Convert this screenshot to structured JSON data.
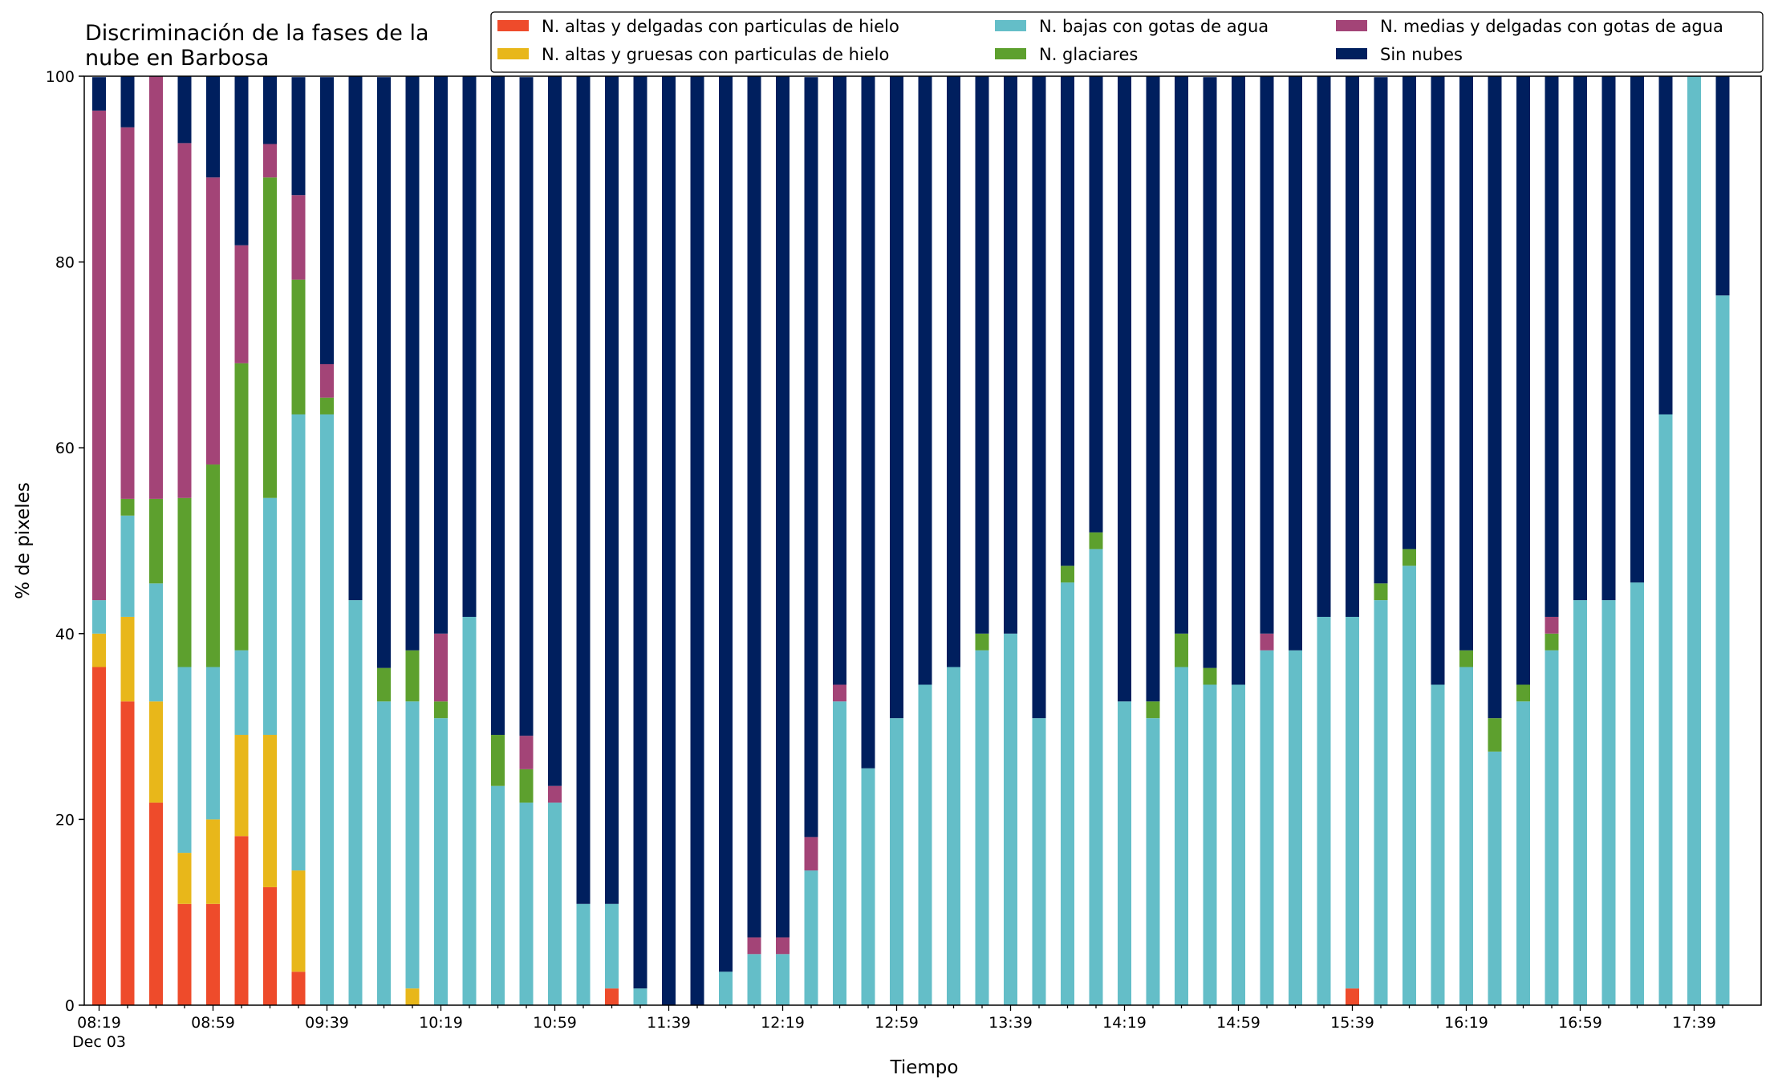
{
  "chart_data": {
    "type": "bar",
    "stacked": true,
    "title": "Discriminación de la fases de la\nnube en Barbosa",
    "xlabel": "Tiempo",
    "ylabel": "% de pixeles",
    "ylim": [
      0,
      100
    ],
    "yticks": [
      0,
      20,
      40,
      60,
      80,
      100
    ],
    "grid": false,
    "legend_position": "top-right",
    "start_time": "08:19",
    "interval_minutes": 10,
    "count": 58,
    "xtick_labels": [
      "08:19\nDec 03",
      "08:59",
      "09:39",
      "10:19",
      "10:59",
      "11:39",
      "12:19",
      "12:59",
      "13:39",
      "14:19",
      "14:59",
      "15:39",
      "16:19",
      "16:59",
      "17:39"
    ],
    "xtick_every": 4,
    "series": [
      {
        "name": "N. altas y delgadas con particulas de hielo",
        "color": "#ee4b2b",
        "values": [
          36.4,
          32.7,
          21.8,
          10.9,
          10.9,
          18.2,
          12.7,
          3.6,
          0,
          0,
          0,
          0,
          0,
          0,
          0,
          0,
          0,
          0,
          1.8,
          0,
          0,
          0,
          0,
          0,
          0,
          0,
          0,
          0,
          0,
          0,
          0,
          0,
          0,
          0,
          0,
          0,
          0,
          0,
          0,
          0,
          0,
          0,
          0,
          0,
          1.8,
          0,
          0,
          0,
          0,
          0,
          0,
          0,
          0,
          0,
          0,
          0,
          0,
          0
        ]
      },
      {
        "name": "N. altas y gruesas con particulas de hielo",
        "color": "#e8b71a",
        "values": [
          3.6,
          9.1,
          10.9,
          5.5,
          9.1,
          10.9,
          16.4,
          10.9,
          0,
          0,
          0,
          1.8,
          0,
          0,
          0,
          0,
          0,
          0,
          0,
          0,
          0,
          0,
          0,
          0,
          0,
          0,
          0,
          0,
          0,
          0,
          0,
          0,
          0,
          0,
          0,
          0,
          0,
          0,
          0,
          0,
          0,
          0,
          0,
          0,
          0,
          0,
          0,
          0,
          0,
          0,
          0,
          0,
          0,
          0,
          0,
          0,
          0,
          0
        ]
      },
      {
        "name": "N. bajas con gotas de agua",
        "color": "#64bec8",
        "values": [
          3.6,
          10.9,
          12.7,
          20,
          16.4,
          9.1,
          25.5,
          49.1,
          63.6,
          43.6,
          32.7,
          30.9,
          30.9,
          41.8,
          23.6,
          21.8,
          21.8,
          10.9,
          9.1,
          1.8,
          0,
          0,
          3.6,
          5.5,
          5.5,
          14.5,
          32.7,
          25.5,
          30.9,
          34.5,
          36.4,
          38.2,
          40,
          30.9,
          45.5,
          49.1,
          32.7,
          30.9,
          36.4,
          34.5,
          34.5,
          38.2,
          38.2,
          41.8,
          40,
          43.6,
          47.3,
          34.5,
          36.4,
          27.3,
          32.7,
          38.2,
          43.6,
          43.6,
          45.5,
          63.6,
          100,
          76.4
        ]
      },
      {
        "name": "N. glaciares",
        "color": "#5da02e",
        "values": [
          0,
          1.8,
          9.1,
          18.2,
          21.8,
          30.9,
          34.5,
          14.5,
          1.8,
          0,
          3.6,
          5.5,
          1.8,
          0,
          5.5,
          3.6,
          0,
          0,
          0,
          0,
          0,
          0,
          0,
          0,
          0,
          0,
          0,
          0,
          0,
          0,
          0,
          1.8,
          0,
          0,
          1.8,
          1.8,
          0,
          1.8,
          3.6,
          1.8,
          0,
          0,
          0,
          0,
          0,
          1.8,
          1.8,
          0,
          1.8,
          3.6,
          1.8,
          1.8,
          0,
          0,
          0,
          0,
          0,
          0
        ]
      },
      {
        "name": "N. medias y delgadas con gotas de agua",
        "color": "#a34477",
        "values": [
          52.7,
          40,
          45.5,
          38.2,
          30.9,
          12.7,
          3.6,
          9.1,
          3.6,
          0,
          0,
          0,
          7.3,
          0,
          0,
          3.6,
          1.8,
          0,
          0,
          0,
          0,
          0,
          0,
          1.8,
          1.8,
          3.6,
          1.8,
          0,
          0,
          0,
          0,
          0,
          0,
          0,
          0,
          0,
          0,
          0,
          0,
          0,
          0,
          1.8,
          0,
          0,
          0,
          0,
          0,
          0,
          0,
          0,
          0,
          1.8,
          0,
          0,
          0,
          0,
          0,
          0
        ]
      },
      {
        "name": "Sin nubes",
        "color": "#001f5e",
        "values": [
          3.6,
          5.5,
          0,
          7.3,
          10.9,
          18.2,
          7.3,
          12.7,
          30.9,
          56.4,
          63.6,
          61.8,
          60,
          58.2,
          70.9,
          70.9,
          76.4,
          89.1,
          90.9,
          98.2,
          100,
          100,
          96.4,
          92.7,
          92.7,
          81.8,
          65.5,
          74.5,
          69.1,
          65.5,
          63.6,
          60,
          60,
          69.1,
          52.7,
          49.1,
          67.3,
          67.3,
          60,
          63.6,
          65.5,
          60,
          61.8,
          58.2,
          58.2,
          54.5,
          50.9,
          65.5,
          61.8,
          69.1,
          65.5,
          58.2,
          56.4,
          56.4,
          54.5,
          36.4,
          0,
          23.6
        ]
      }
    ],
    "legend_order": [
      0,
      1,
      2,
      3,
      4,
      5
    ]
  }
}
